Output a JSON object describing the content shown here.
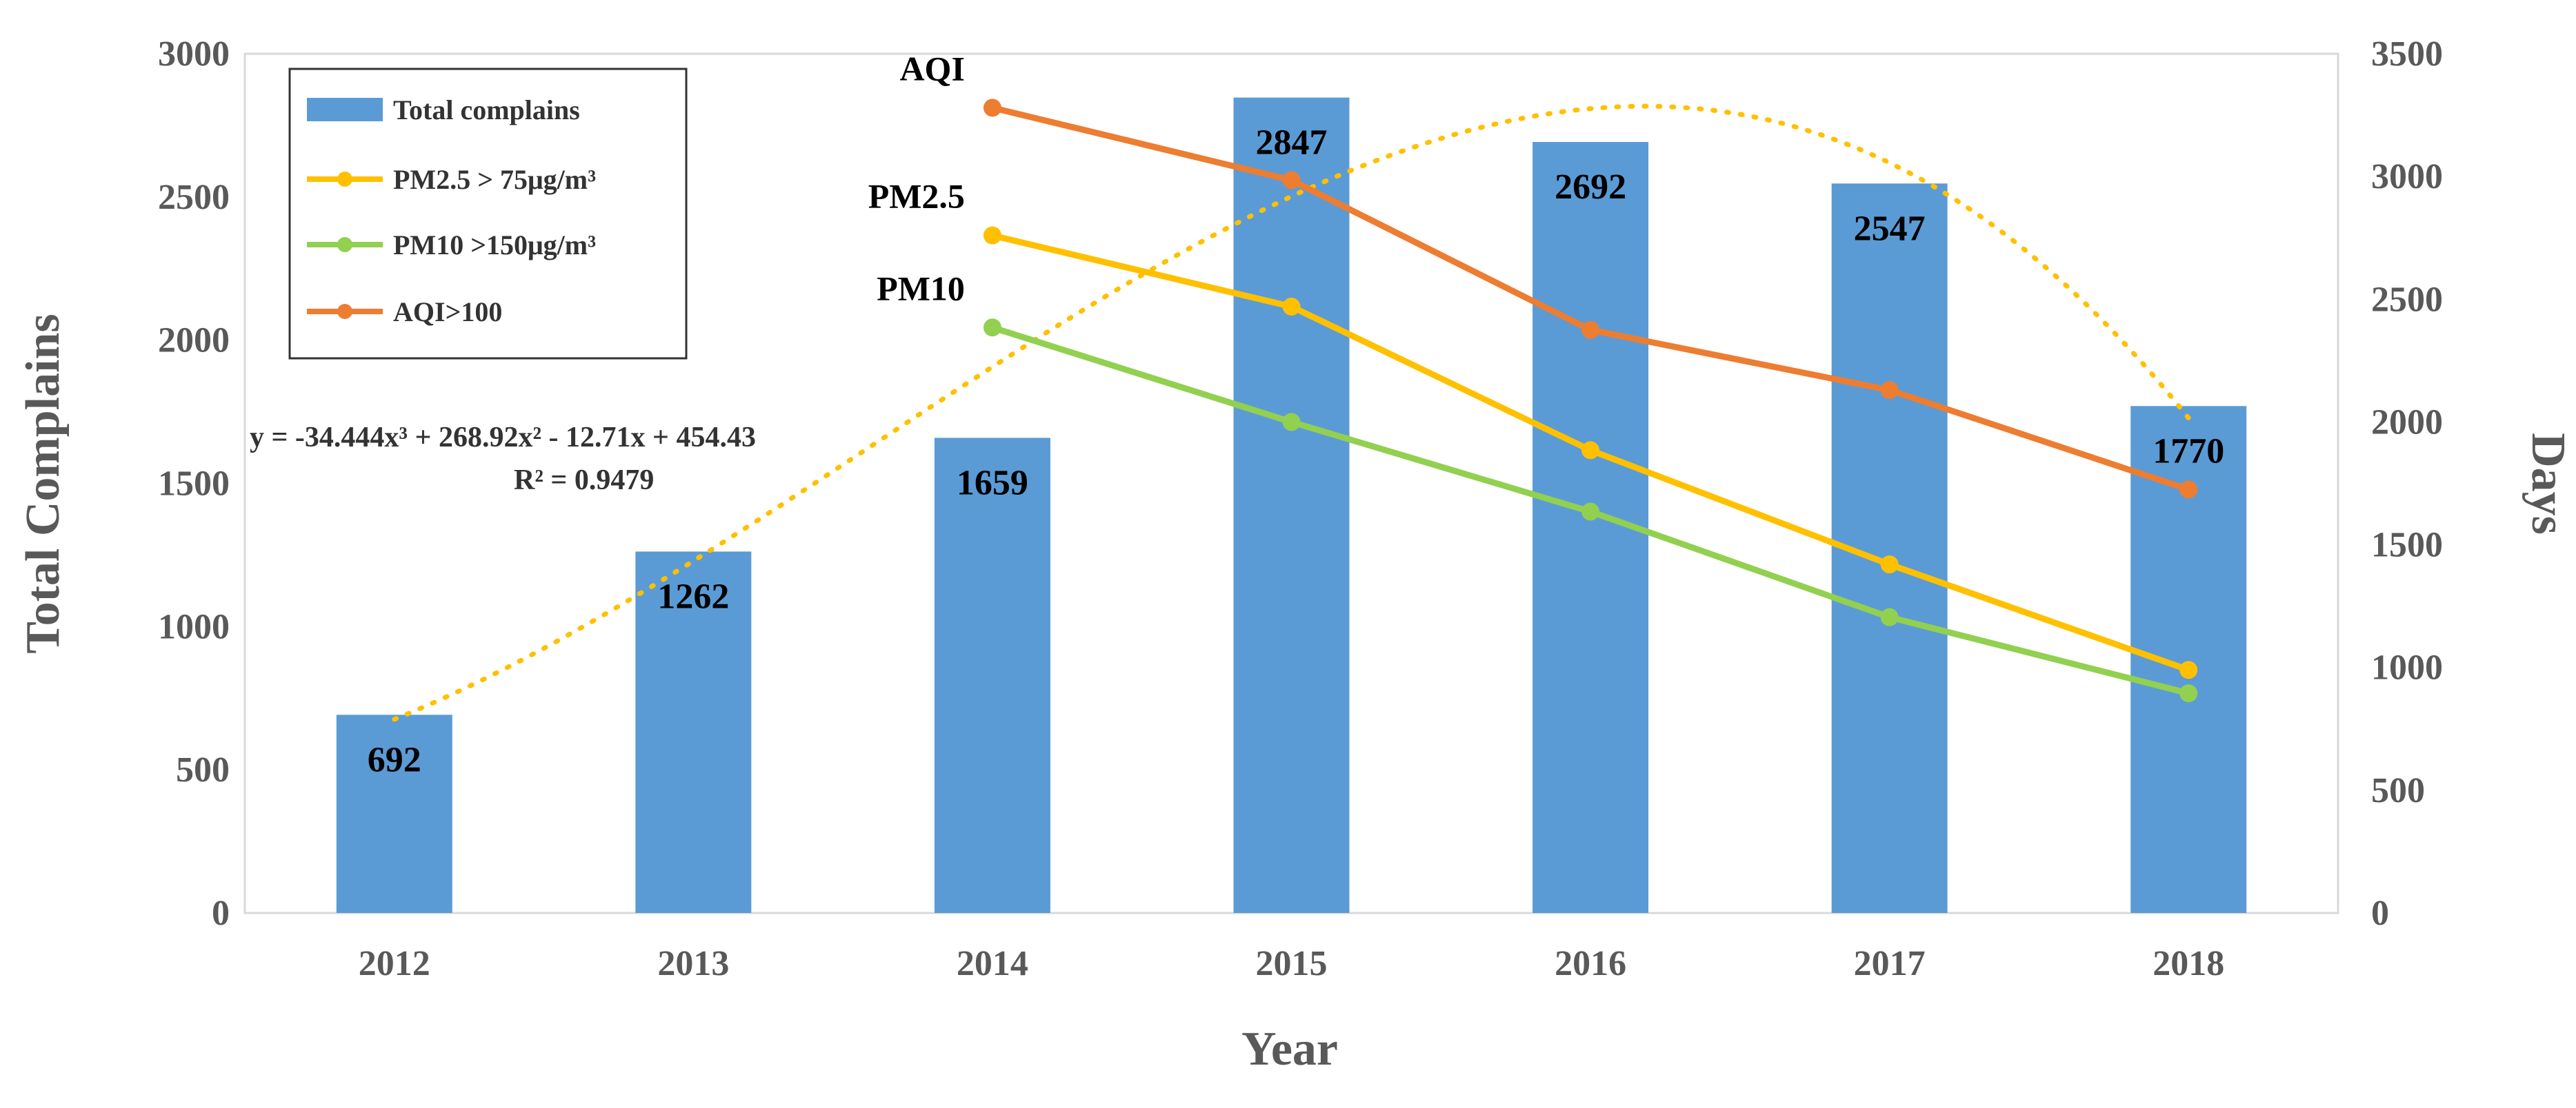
{
  "chart_data": {
    "type": "bar",
    "categories": [
      "2012",
      "2013",
      "2014",
      "2015",
      "2016",
      "2017",
      "2018"
    ],
    "xlabel": "Year",
    "ylabel": "Total Complains",
    "y2label": "Days",
    "ylim": [
      0,
      3000
    ],
    "y2lim": [
      0,
      3500
    ],
    "yticks": [
      "0",
      "500",
      "1000",
      "1500",
      "2000",
      "2500",
      "3000"
    ],
    "y2ticks": [
      "0",
      "500",
      "1000",
      "1500",
      "2000",
      "2500",
      "3000",
      "3500"
    ],
    "bars": {
      "name": "Total complains",
      "color": "#5b9bd5",
      "values": [
        692,
        1262,
        1659,
        2847,
        2692,
        2547,
        1770
      ],
      "labels": [
        "692",
        "1262",
        "1659",
        "2847",
        "2692",
        "2547",
        "1770"
      ]
    },
    "series": [
      {
        "name": "PM2.5 > 75μg/m³",
        "label": "PM2.5",
        "color": "#ffc000",
        "axis": "right",
        "values": [
          null,
          null,
          2760,
          2470,
          1885,
          1420,
          990
        ]
      },
      {
        "name": "PM10 >150μg/m³",
        "label": "PM10",
        "color": "#92d050",
        "axis": "right",
        "values": [
          null,
          null,
          2385,
          2000,
          1635,
          1205,
          895
        ]
      },
      {
        "name": "AQI>100",
        "label": "AQI",
        "color": "#ed7d31",
        "axis": "right",
        "values": [
          null,
          null,
          3280,
          2985,
          2375,
          2130,
          1725
        ]
      }
    ],
    "trendline": {
      "type": "polynomial",
      "order": 3,
      "color": "#ffc000",
      "coefficients": [
        -34.444,
        268.92,
        -12.71,
        454.43
      ],
      "equation": "y = -34.444x³ + 268.92x² - 12.71x + 454.43",
      "r2": "R² = 0.9479"
    },
    "legend": {
      "position": "top-left",
      "items": [
        "Total complains",
        "PM2.5 > 75μg/m³",
        "PM10 >150μg/m³",
        "AQI>100"
      ]
    }
  }
}
